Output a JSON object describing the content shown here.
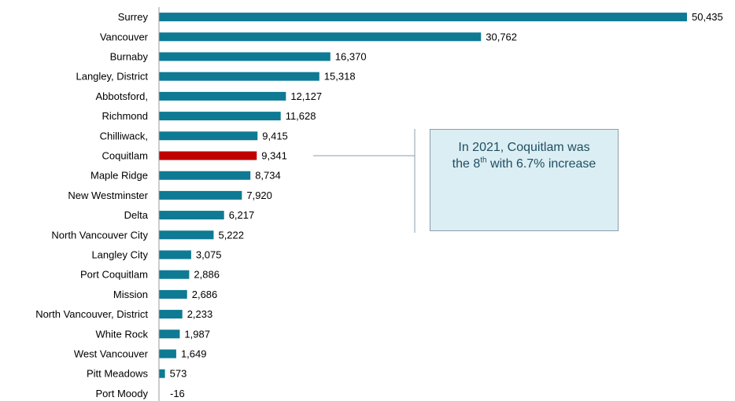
{
  "chart_data": {
    "type": "bar",
    "orientation": "horizontal",
    "categories": [
      "Surrey",
      "Vancouver",
      "Burnaby",
      "Langley, District",
      "Abbotsford,",
      "Richmond",
      "Chilliwack,",
      "Coquitlam",
      "Maple Ridge",
      "New Westminster",
      "Delta",
      "North Vancouver City",
      "Langley City",
      "Port Coquitlam",
      "Mission",
      "North Vancouver,  District",
      "White Rock",
      "West Vancouver",
      "Pitt Meadows",
      "Port Moody"
    ],
    "values": [
      50435,
      30762,
      16370,
      15318,
      12127,
      11628,
      9415,
      9341,
      8734,
      7920,
      6217,
      5222,
      3075,
      2886,
      2686,
      2233,
      1987,
      1649,
      573,
      -16
    ],
    "value_labels": [
      "50,435",
      "30,762",
      "16,370",
      "15,318",
      "12,127",
      "11,628",
      "9,415",
      "9,341",
      "8,734",
      "7,920",
      "6,217",
      "5,222",
      "3,075",
      "2,886",
      "2,686",
      "2,233",
      "1,987",
      "1,649",
      "573",
      "-16"
    ],
    "highlight": "Coquitlam",
    "colors": {
      "bar": "#0e7a94",
      "highlight": "#c00000",
      "highlight_label": "#c00000"
    },
    "grid": false,
    "annotation": {
      "line1": "In 2021, Coquitlam was",
      "line2_prefix": "the 8",
      "line2_sup": "th",
      "line2_suffix": " with 6.7% increase"
    }
  }
}
